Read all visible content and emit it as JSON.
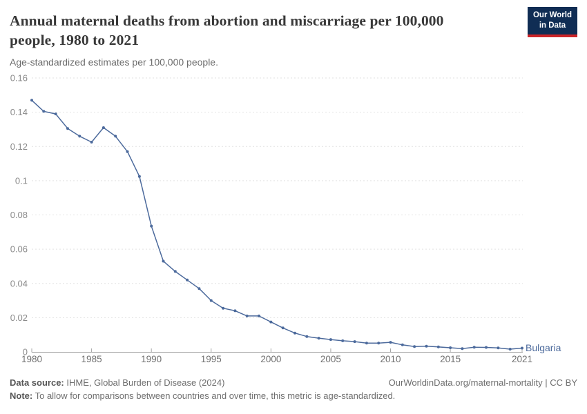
{
  "header": {
    "title": "Annual maternal deaths from abortion and miscarriage per 100,000 people, 1980 to 2021",
    "subtitle": "Age-standardized estimates per 100,000 people.",
    "logo": {
      "line1": "Our World",
      "line2": "in Data"
    }
  },
  "footer": {
    "source_label": "Data source:",
    "source_value": "IHME, Global Burden of Disease (2024)",
    "attribution": "OurWorldinData.org/maternal-mortality | CC BY",
    "note_label": "Note:",
    "note_value": "To allow for comparisons between countries and over time, this metric is age-standardized."
  },
  "colors": {
    "line": "#4c6a9c",
    "entity_label": "#4c6a9c",
    "logo_bg": "#102d54",
    "logo_bar": "#cc2428",
    "gridline": "#e2e2e2",
    "axis": "#a5a5a5",
    "y_tick_text": "#8a8a8a",
    "x_tick_text": "#6f6f6f"
  },
  "chart_data": {
    "type": "line",
    "title": "Annual maternal deaths from abortion and miscarriage per 100,000 people, 1980 to 2021",
    "subtitle": "Age-standardized estimates per 100,000 people.",
    "entity": "Bulgaria",
    "grid": true,
    "legend_position": "end-of-line-label",
    "xlabel": "",
    "ylabel": "",
    "xlim": [
      1980,
      2021
    ],
    "ylim": [
      0,
      0.16
    ],
    "x_ticks": [
      1980,
      1985,
      1990,
      1995,
      2000,
      2005,
      2010,
      2015,
      2021
    ],
    "y_tick_labels": [
      "0",
      "0.02",
      "0.04",
      "0.06",
      "0.08",
      "0.1",
      "0.12",
      "0.14",
      "0.16"
    ],
    "x": [
      1980,
      1981,
      1982,
      1983,
      1984,
      1985,
      1986,
      1987,
      1988,
      1989,
      1990,
      1991,
      1992,
      1993,
      1994,
      1995,
      1996,
      1997,
      1998,
      1999,
      2000,
      2001,
      2002,
      2003,
      2004,
      2005,
      2006,
      2007,
      2008,
      2009,
      2010,
      2011,
      2012,
      2013,
      2014,
      2015,
      2016,
      2017,
      2018,
      2019,
      2020,
      2021
    ],
    "series": [
      {
        "name": "Bulgaria",
        "values": [
          0.147,
          0.1405,
          0.139,
          0.1305,
          0.126,
          0.1225,
          0.131,
          0.126,
          0.117,
          0.1025,
          0.0735,
          0.053,
          0.047,
          0.042,
          0.037,
          0.03,
          0.0255,
          0.024,
          0.021,
          0.021,
          0.0175,
          0.014,
          0.011,
          0.009,
          0.008,
          0.0072,
          0.0065,
          0.006,
          0.0051,
          0.0051,
          0.0056,
          0.0041,
          0.0031,
          0.0033,
          0.0029,
          0.0024,
          0.0019,
          0.0027,
          0.0026,
          0.0023,
          0.0016,
          0.0022
        ]
      }
    ]
  }
}
